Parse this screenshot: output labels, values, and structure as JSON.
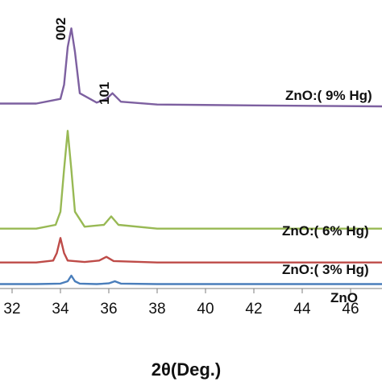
{
  "chart_data": {
    "type": "line",
    "title": "",
    "xlabel": "2θ(Deg.)",
    "ylabel": "",
    "xlim": [
      31.5,
      47.3
    ],
    "xticks": [
      32,
      34,
      36,
      38,
      40,
      42,
      44,
      46
    ],
    "grid": false,
    "peak_labels": [
      {
        "text": "002",
        "x": 34.4
      },
      {
        "text": "101",
        "x": 36.2
      }
    ],
    "series": [
      {
        "name": "ZnO",
        "color": "#4a7ebb",
        "x": [
          31.5,
          33.0,
          34.0,
          34.3,
          34.45,
          34.6,
          34.8,
          35.5,
          36.0,
          36.25,
          36.5,
          38.0,
          42.0,
          47.3
        ],
        "y": [
          0.3,
          0.3,
          0.35,
          0.6,
          1.2,
          0.6,
          0.35,
          0.3,
          0.38,
          0.6,
          0.35,
          0.3,
          0.3,
          0.3
        ]
      },
      {
        "name": "ZnO:( 3% Hg)",
        "color": "#be4b48",
        "x": [
          31.5,
          33.0,
          33.7,
          33.85,
          34.0,
          34.15,
          34.3,
          35.0,
          35.6,
          35.9,
          36.2,
          38.0,
          42.0,
          47.3
        ],
        "y": [
          2.6,
          2.6,
          2.8,
          3.6,
          5.2,
          3.6,
          2.8,
          2.65,
          2.8,
          3.2,
          2.75,
          2.6,
          2.6,
          2.6
        ]
      },
      {
        "name": "ZnO:( 6% Hg)",
        "color": "#98b954",
        "x": [
          31.5,
          33.0,
          33.8,
          34.0,
          34.15,
          34.3,
          34.45,
          34.6,
          35.0,
          35.8,
          36.1,
          36.4,
          38.0,
          42.0,
          47.3
        ],
        "y": [
          6.2,
          6.2,
          6.6,
          8.0,
          12.5,
          16.6,
          12.5,
          8.0,
          6.4,
          6.6,
          7.5,
          6.6,
          6.2,
          6.2,
          6.2
        ]
      },
      {
        "name": "ZnO:( 9% Hg)",
        "color": "#7d60a0",
        "x": [
          31.5,
          33.0,
          34.0,
          34.15,
          34.3,
          34.45,
          34.6,
          34.8,
          35.5,
          35.9,
          36.15,
          36.5,
          38.0,
          42.0,
          47.3
        ],
        "y": [
          19.5,
          19.5,
          20.0,
          21.5,
          25.5,
          27.5,
          25.0,
          20.6,
          19.6,
          20.0,
          20.6,
          19.7,
          19.4,
          19.3,
          19.2
        ]
      }
    ]
  }
}
